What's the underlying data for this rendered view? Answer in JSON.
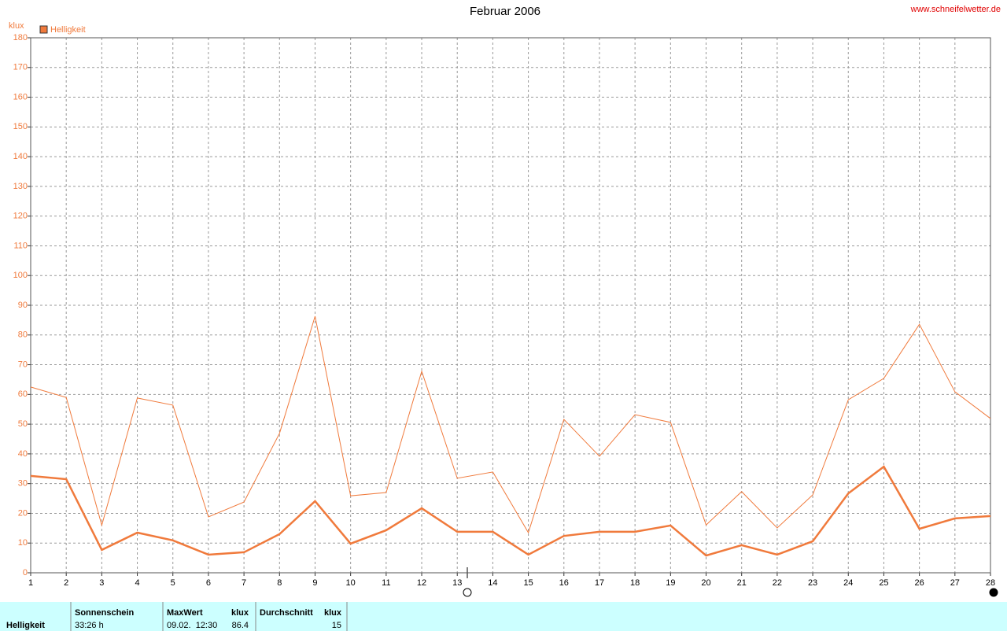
{
  "chart_data": {
    "type": "line",
    "title": "Februar 2006",
    "source": "www.schneifelwetter.de",
    "y_label": "klux",
    "x": [
      1,
      2,
      3,
      4,
      5,
      6,
      7,
      8,
      9,
      10,
      11,
      12,
      13,
      14,
      15,
      16,
      17,
      18,
      19,
      20,
      21,
      22,
      23,
      24,
      25,
      26,
      27,
      28
    ],
    "xlim": [
      1,
      28
    ],
    "xticks": [
      1,
      2,
      3,
      4,
      5,
      6,
      7,
      8,
      9,
      10,
      11,
      12,
      13,
      14,
      15,
      16,
      17,
      18,
      19,
      20,
      21,
      22,
      23,
      24,
      25,
      26,
      27,
      28
    ],
    "ylim": [
      0,
      180
    ],
    "yticks": [
      0,
      10,
      20,
      30,
      40,
      50,
      60,
      70,
      80,
      90,
      100,
      110,
      120,
      130,
      140,
      150,
      160,
      170,
      180
    ],
    "grid": true,
    "legend": "top-left",
    "series": [
      {
        "name": "Helligkeit",
        "color": "#f07a3c",
        "values": [
          32.6,
          31.5,
          7.7,
          13.5,
          10.9,
          6.1,
          6.9,
          13,
          24.1,
          9.8,
          14.3,
          21.7,
          13.8,
          13.8,
          6.1,
          12.4,
          13.8,
          13.8,
          15.9,
          5.8,
          9.3,
          6.1,
          10.6,
          26.7,
          35.7,
          14.8,
          18.3,
          19.1
        ]
      },
      {
        "color": "#f07a3c",
        "values": [
          62.5,
          59,
          16,
          58.8,
          56.4,
          18.8,
          23.8,
          46.9,
          86.3,
          25.9,
          27,
          67.8,
          31.8,
          33.9,
          13.5,
          51.6,
          39.2,
          53.2,
          50.6,
          16.1,
          27.3,
          15.1,
          26.2,
          58.2,
          65.4,
          83.6,
          60.9,
          51.9
        ]
      }
    ]
  },
  "table": {
    "row_label": "Helligkeit",
    "headers": [
      "Sonnenschein",
      "MaxWert",
      "klux",
      "Durchschnitt",
      "klux"
    ],
    "values": [
      "33:26 h",
      "09.02.  12:30",
      "86.4",
      "15"
    ]
  }
}
